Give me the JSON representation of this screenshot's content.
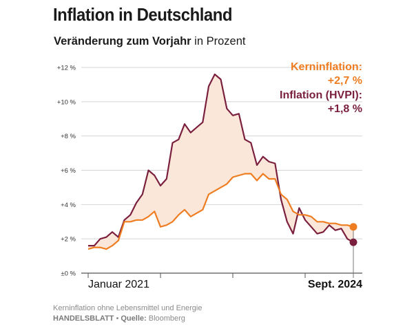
{
  "title": "Inflation in Deutschland",
  "subtitle_bold": "Veränderung zum Vorjahr",
  "subtitle_rest": " in Prozent",
  "footer": {
    "note": "Kerninflation ohne Lebensmittel und Energie",
    "publisher": "HANDELSBLATT",
    "separator": " • ",
    "source_label": "Quelle:",
    "source": " Bloomberg"
  },
  "colors": {
    "core": "#ee7d22",
    "hvpi": "#7a1f3d",
    "fill": "#fbe7d9",
    "grid": "#d4d4d4",
    "axis": "#555555"
  },
  "chart_data": {
    "type": "line",
    "x_start_label": "Januar 2021",
    "x_end_label": "Sept. 2024",
    "ylim": [
      0,
      12
    ],
    "yticks": [
      {
        "value": 0,
        "label": "±0 %"
      },
      {
        "value": 2,
        "label": "+2 %"
      },
      {
        "value": 4,
        "label": "+4 %"
      },
      {
        "value": 6,
        "label": "+6 %"
      },
      {
        "value": 8,
        "label": "+8 %"
      },
      {
        "value": 10,
        "label": "+10 %"
      },
      {
        "value": 12,
        "label": "+12 %"
      }
    ],
    "x": [
      "2021-01",
      "2021-02",
      "2021-03",
      "2021-04",
      "2021-05",
      "2021-06",
      "2021-07",
      "2021-08",
      "2021-09",
      "2021-10",
      "2021-11",
      "2021-12",
      "2022-01",
      "2022-02",
      "2022-03",
      "2022-04",
      "2022-05",
      "2022-06",
      "2022-07",
      "2022-08",
      "2022-09",
      "2022-10",
      "2022-11",
      "2022-12",
      "2023-01",
      "2023-02",
      "2023-03",
      "2023-04",
      "2023-05",
      "2023-06",
      "2023-07",
      "2023-08",
      "2023-09",
      "2023-10",
      "2023-11",
      "2023-12",
      "2024-01",
      "2024-02",
      "2024-03",
      "2024-04",
      "2024-05",
      "2024-06",
      "2024-07",
      "2024-08",
      "2024-09"
    ],
    "series": [
      {
        "name": "Kerninflation",
        "end_label": "Kerninflation:",
        "end_value": "+2,7 %",
        "color": "#ee7d22",
        "values": [
          1.4,
          1.5,
          1.5,
          1.4,
          1.6,
          1.9,
          3.0,
          3.0,
          3.1,
          3.1,
          3.3,
          3.6,
          2.7,
          2.8,
          3.0,
          3.4,
          3.7,
          3.3,
          3.5,
          3.7,
          4.6,
          4.8,
          5.0,
          5.2,
          5.6,
          5.7,
          5.8,
          5.8,
          5.4,
          5.8,
          5.5,
          5.5,
          4.6,
          4.3,
          3.6,
          3.4,
          3.4,
          3.3,
          3.0,
          3.0,
          2.9,
          2.9,
          2.8,
          2.8,
          2.7
        ]
      },
      {
        "name": "Inflation (HVPI)",
        "end_label": "Inflation (HVPI):",
        "end_value": "+1,8 %",
        "color": "#7a1f3d",
        "values": [
          1.6,
          1.6,
          2.0,
          2.1,
          2.4,
          2.1,
          3.1,
          3.4,
          4.1,
          4.6,
          6.0,
          5.7,
          5.1,
          5.5,
          7.6,
          7.8,
          8.7,
          8.2,
          8.5,
          8.8,
          10.9,
          11.6,
          11.3,
          9.6,
          9.2,
          9.3,
          7.8,
          7.6,
          6.3,
          6.8,
          6.5,
          6.4,
          4.3,
          3.0,
          2.3,
          3.8,
          3.1,
          2.7,
          2.3,
          2.4,
          2.8,
          2.5,
          2.6,
          2.0,
          1.8
        ]
      }
    ],
    "grid": true,
    "legend": "top-right, at line ends"
  }
}
